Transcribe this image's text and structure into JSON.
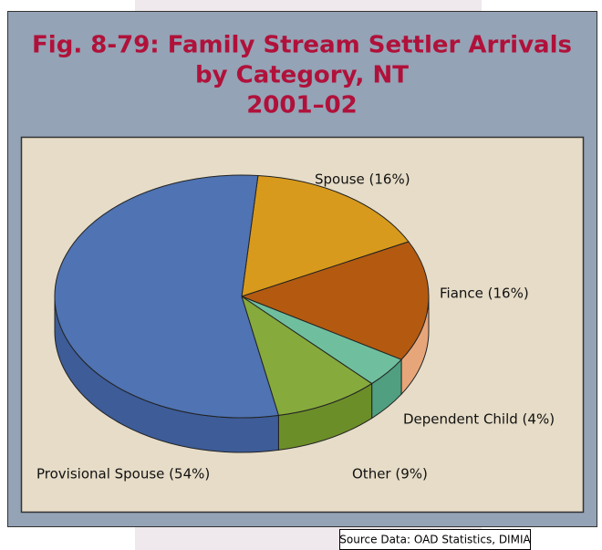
{
  "chart_data": {
    "type": "pie",
    "title": [
      "Fig. 8-79: Family Stream Settler Arrivals",
      "by Category, NT",
      "2001–02"
    ],
    "categories": [
      "Spouse",
      "Fiance",
      "Dependent Child",
      "Other",
      "Provisional Spouse"
    ],
    "values": [
      16,
      16,
      4,
      9,
      54
    ],
    "value_labels": [
      "Spouse (16%)",
      "Fiance (16%)",
      "Dependent Child (4%)",
      "Other (9%)",
      "Provisional Spouse (54%)"
    ],
    "colors": [
      "#d89a1c",
      "#b35a10",
      "#6fbf9f",
      "#86aa3c",
      "#4f73b3"
    ],
    "side_colors": [
      "#b07a10",
      "#e7a67a",
      "#4f9f80",
      "#6c8e28",
      "#3d5c98"
    ],
    "source": "Source Data: OAD Statistics, DIMIA"
  }
}
